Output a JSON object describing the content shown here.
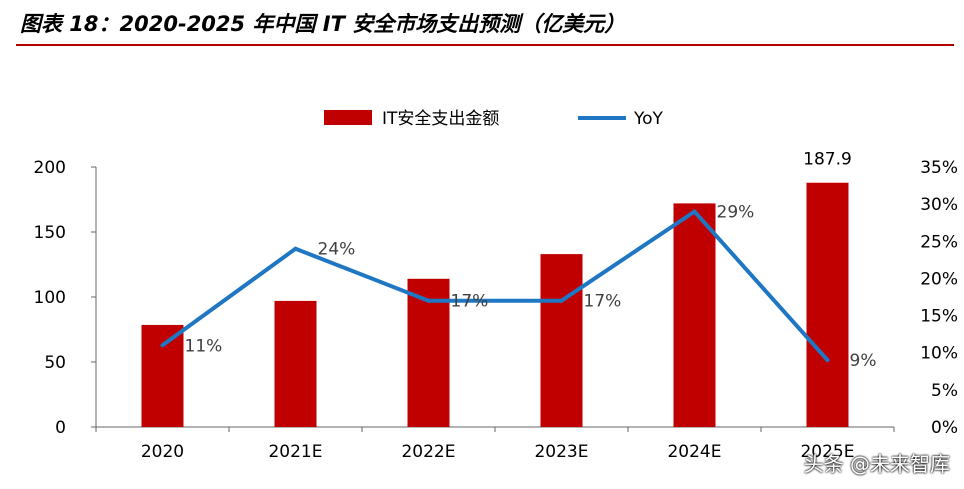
{
  "header": {
    "title": "图表 18：2020-2025 年中国 IT 安全市场支出预测（亿美元）"
  },
  "watermark": "头条 @未来智库",
  "colors": {
    "bar": "#c00000",
    "line": "#1f77c4",
    "title_rule": "#b00000"
  },
  "chart_data": {
    "type": "bar",
    "categories": [
      "2020",
      "2021E",
      "2022E",
      "2023E",
      "2024E",
      "2025E"
    ],
    "series": [
      {
        "name": "IT安全支出金额",
        "type": "bar",
        "axis": "left",
        "values": [
          78.5,
          97,
          114,
          133,
          172,
          187.9
        ]
      },
      {
        "name": "YoY",
        "type": "line",
        "axis": "right",
        "values": [
          11,
          24,
          17,
          17,
          29,
          9
        ]
      }
    ],
    "bar_labels": [
      "",
      "",
      "",
      "",
      "",
      "187.9"
    ],
    "line_labels": [
      "11%",
      "24%",
      "17%",
      "17%",
      "29%",
      "9%"
    ],
    "ylim_left": [
      0,
      200
    ],
    "yticks_left": [
      "0",
      "50",
      "100",
      "150",
      "200"
    ],
    "ylim_right": [
      0,
      35
    ],
    "yticks_right": [
      "0%",
      "5%",
      "10%",
      "15%",
      "20%",
      "25%",
      "30%",
      "35%"
    ],
    "legend_position": "top",
    "grid": false
  }
}
